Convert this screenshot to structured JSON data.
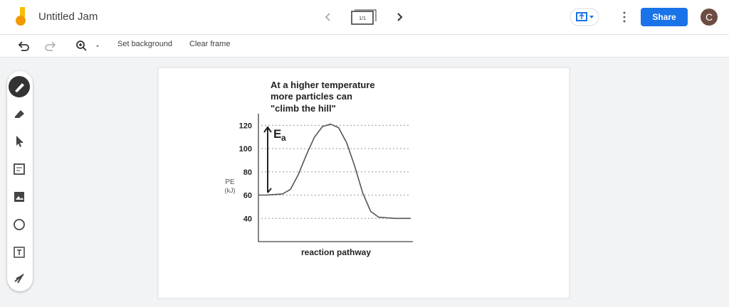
{
  "header": {
    "title": "Untitled Jam",
    "frame_indicator": "1/1",
    "share": "Share",
    "avatar": "C"
  },
  "toolbar": {
    "set_background": "Set background",
    "clear_frame": "Clear frame"
  },
  "frame": {
    "chart_data": {
      "type": "line",
      "title": [
        "At a higher temperature",
        "more particles can",
        "\"climb the hill\""
      ],
      "y_label": [
        "PE",
        "(kJ)"
      ],
      "x_label": "reaction pathway",
      "annotation": [
        "E",
        "a"
      ],
      "categories": [
        null,
        null,
        null,
        null,
        null,
        null,
        null,
        null,
        null,
        null,
        null,
        null,
        null,
        null,
        null,
        null,
        null,
        null,
        null,
        null
      ],
      "values": [
        60,
        60,
        60.5,
        61,
        65,
        78,
        95,
        110,
        119,
        121,
        118,
        105,
        85,
        62,
        46,
        41,
        40.5,
        40,
        40,
        40
      ],
      "color": "#555555",
      "ylim": [
        20,
        130
      ],
      "yticks": [
        120,
        100,
        80,
        60,
        40
      ],
      "grid": true
    }
  }
}
